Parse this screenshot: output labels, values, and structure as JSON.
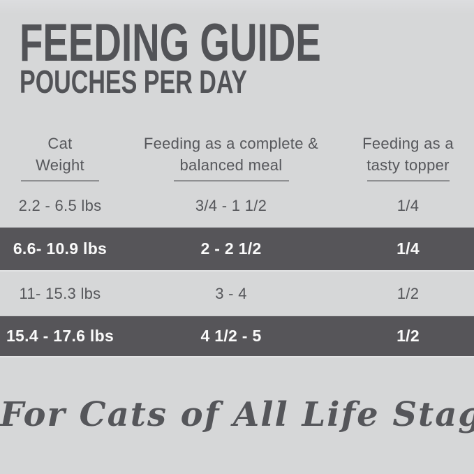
{
  "page": {
    "title": "FEEDING GUIDE",
    "subtitle": "POUCHES PER DAY",
    "footer_script": "For Cats of All Life Stages"
  },
  "table": {
    "columns": [
      {
        "label_line1": "Cat",
        "label_line2": "Weight"
      },
      {
        "label_line1": "Feeding as a complete &",
        "label_line2": "balanced meal"
      },
      {
        "label_line1": "Feeding as a",
        "label_line2": "tasty topper"
      }
    ],
    "rows": [
      {
        "weight": "2.2 - 6.5 lbs",
        "meal": "3/4 - 1 1/2",
        "topper": "1/4",
        "highlighted": false
      },
      {
        "weight": "6.6- 10.9 lbs",
        "meal": "2 - 2 1/2",
        "topper": "1/4",
        "highlighted": true
      },
      {
        "weight": "11- 15.3 lbs",
        "meal": "3 - 4",
        "topper": "1/2",
        "highlighted": false
      },
      {
        "weight": "15.4 - 17.6 lbs",
        "meal": "4 1/2 - 5",
        "topper": "1/2",
        "highlighted": true
      }
    ]
  },
  "colors": {
    "background": "#d6d7d8",
    "text_dark": "#56575b",
    "title_text": "#525357",
    "row_highlight_background": "#565559",
    "row_highlight_text": "#fafafa",
    "header_underline": "#8f9092"
  },
  "chart_data": {
    "type": "table",
    "title": "FEEDING GUIDE",
    "subtitle": "POUCHES PER DAY",
    "columns": [
      "Cat Weight",
      "Feeding as a complete & balanced meal",
      "Feeding as a tasty topper"
    ],
    "rows": [
      [
        "2.2 - 6.5 lbs",
        "3/4 - 1 1/2",
        "1/4"
      ],
      [
        "6.6- 10.9 lbs",
        "2 - 2 1/2",
        "1/4"
      ],
      [
        "11- 15.3 lbs",
        "3 - 4",
        "1/2"
      ],
      [
        "15.4 - 17.6 lbs",
        "4 1/2 - 5",
        "1/2"
      ]
    ],
    "highlighted_row_indexes": [
      1,
      3
    ],
    "footnote": "For Cats of All Life Stages",
    "units": "pouches per day"
  }
}
